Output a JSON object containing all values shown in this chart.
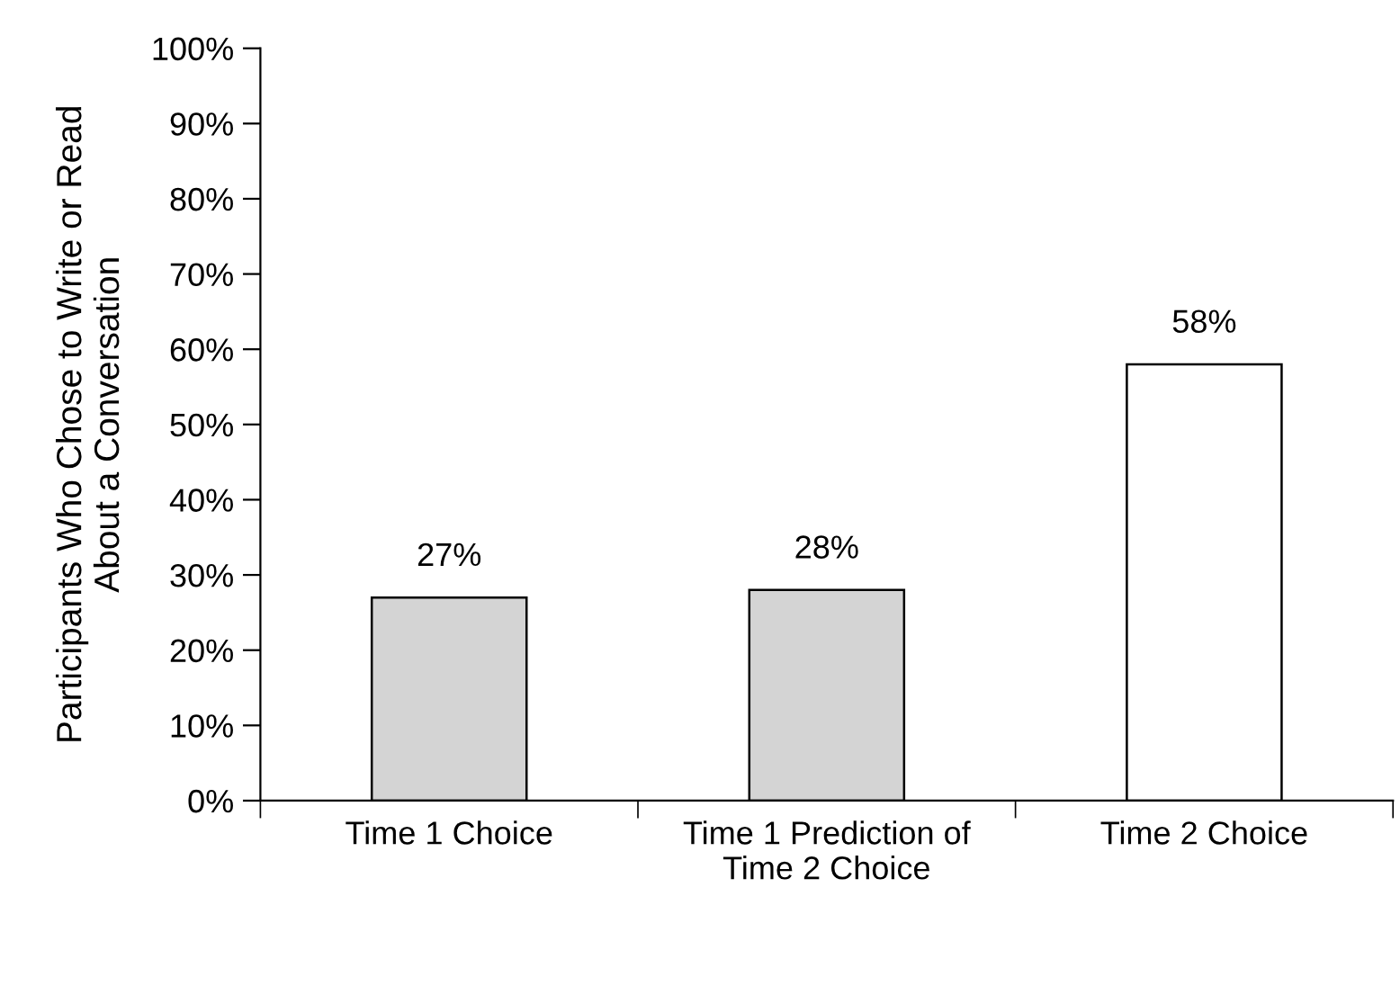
{
  "chart_data": {
    "type": "bar",
    "ylabel": "Participants Who Chose to Write or Read\nAbout a Conversation",
    "categories": [
      "Time 1 Choice",
      "Time 1 Prediction of\nTime 2 Choice",
      "Time 2 Choice"
    ],
    "values": [
      27,
      28,
      58
    ],
    "colors": [
      "#d4d4d4",
      "#d4d4d4",
      "#ffffff"
    ],
    "value_labels": [
      "27%",
      "28%",
      "58%"
    ],
    "ylim": [
      0,
      100
    ],
    "yticks": [
      {
        "value": 0,
        "label": "0%"
      },
      {
        "value": 10,
        "label": "10%"
      },
      {
        "value": 20,
        "label": "20%"
      },
      {
        "value": 30,
        "label": "30%"
      },
      {
        "value": 40,
        "label": "40%"
      },
      {
        "value": 50,
        "label": "50%"
      },
      {
        "value": 60,
        "label": "60%"
      },
      {
        "value": 70,
        "label": "70%"
      },
      {
        "value": 80,
        "label": "80%"
      },
      {
        "value": 90,
        "label": "90%"
      },
      {
        "value": 100,
        "label": "100%"
      }
    ],
    "grid": false,
    "legend": false
  }
}
